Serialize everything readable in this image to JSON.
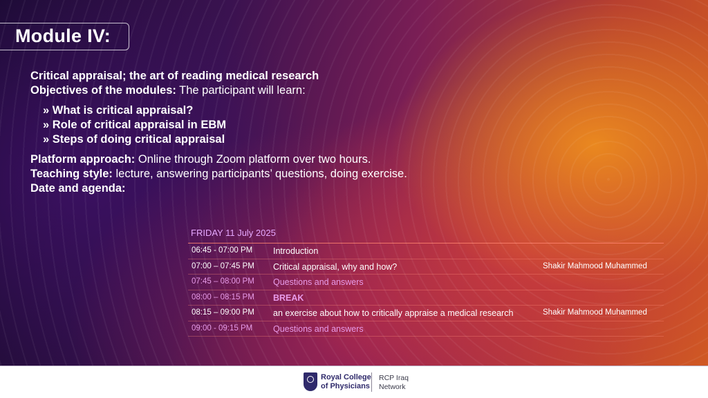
{
  "slide": {
    "title": "Module IV:",
    "topic": "Critical appraisal; the art of reading medical research",
    "objectives_label": "Objectives of the modules:",
    "objectives_text": " The participant will learn:",
    "bullets": [
      "» What is critical appraisal?",
      "» Role of critical appraisal in EBM",
      "» Steps of doing critical appraisal"
    ],
    "platform_label": "Platform approach:",
    "platform_text": " Online through Zoom platform over two hours.",
    "teaching_label": "Teaching style:",
    "teaching_text": " lecture, answering participants’ questions, doing exercise.",
    "date_label": "Date and agenda:"
  },
  "agenda": {
    "date": "FRIDAY 11 July 2025",
    "rows": [
      {
        "time": "06:45 - 07:00 PM",
        "item": "Introduction",
        "speaker": ""
      },
      {
        "time": "07:00 – 07:45 PM",
        "item": "Critical appraisal, why and how?",
        "speaker": "Shakir Mahmood Muhammed"
      },
      {
        "time": "07:45 – 08:00 PM",
        "item": "Questions and answers",
        "speaker": ""
      },
      {
        "time": "08:00 – 08:15 PM",
        "item": "BREAK",
        "speaker": ""
      },
      {
        "time": "08:15 – 09:00 PM",
        "item": "an exercise about how to critically appraise a medical research",
        "speaker": "Shakir Mahmood Muhammed"
      },
      {
        "time": "09:00 - 09:15 PM",
        "item": "Questions and answers",
        "speaker": ""
      }
    ]
  },
  "footer": {
    "logo_line1": "Royal College",
    "logo_line2": "of Physicians",
    "network_line1": "RCP Iraq",
    "network_line2": "Network"
  },
  "colors": {
    "accent_pink": "#e79ae8",
    "date_purple": "#e6a8ff",
    "rcp_navy": "#2f2a6b"
  }
}
